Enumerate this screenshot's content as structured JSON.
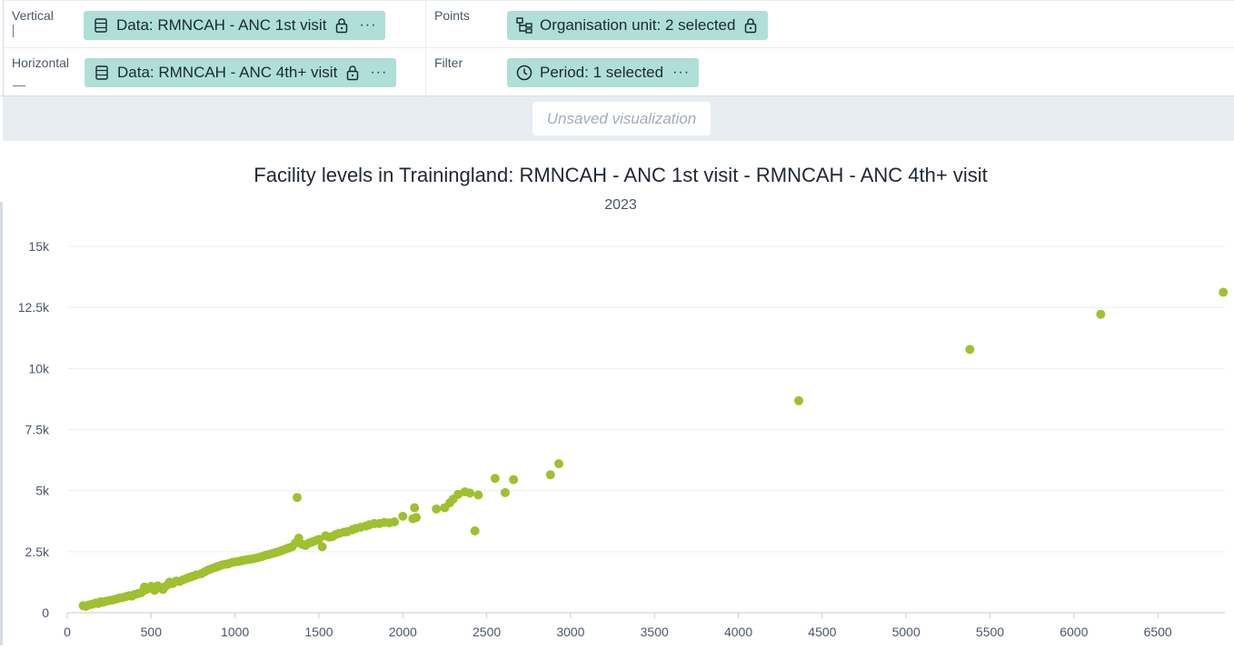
{
  "layout": {
    "vertical": {
      "label": "Vertical",
      "chip": "Data: RMNCAH - ANC 1st visit",
      "icon": "data-table-icon",
      "locked": true
    },
    "horizontal": {
      "label": "Horizontal",
      "chip": "Data: RMNCAH - ANC 4th+ visit",
      "icon": "data-table-icon",
      "locked": true
    },
    "points": {
      "label": "Points",
      "chip": "Organisation unit: 2 selected",
      "icon": "org-unit-tree-icon",
      "locked": true
    },
    "filter": {
      "label": "Filter",
      "chip": "Period: 1 selected",
      "icon": "clock-icon",
      "locked": false
    },
    "more_glyph": "···"
  },
  "banner": {
    "text": "Unsaved visualization"
  },
  "chart_data": {
    "type": "scatter",
    "title": "Facility levels in Trainingland: RMNCAH - ANC 1st visit - RMNCAH - ANC 4th+ visit",
    "subtitle": "2023",
    "xlabel": "",
    "ylabel": "",
    "xlim": [
      0,
      6900
    ],
    "ylim": [
      0,
      15000
    ],
    "x_ticks": [
      0,
      500,
      1000,
      1500,
      2000,
      2500,
      3000,
      3500,
      4000,
      4500,
      5000,
      5500,
      6000,
      6500
    ],
    "x_tick_labels": [
      "0",
      "500",
      "1000",
      "1500",
      "2000",
      "2500",
      "3000",
      "3500",
      "4000",
      "4500",
      "5000",
      "5500",
      "6000",
      "6500"
    ],
    "y_ticks": [
      0,
      2500,
      5000,
      7500,
      10000,
      12500,
      15000
    ],
    "y_tick_labels": [
      "0",
      "2.5k",
      "5k",
      "7.5k",
      "10k",
      "12.5k",
      "15k"
    ],
    "grid": true,
    "legend": "none",
    "marker_color": "#a0c030",
    "series": [
      {
        "points": [
          [
            95,
            290
          ],
          [
            110,
            260
          ],
          [
            130,
            320
          ],
          [
            150,
            350
          ],
          [
            170,
            400
          ],
          [
            185,
            380
          ],
          [
            200,
            450
          ],
          [
            215,
            430
          ],
          [
            230,
            470
          ],
          [
            250,
            500
          ],
          [
            270,
            520
          ],
          [
            290,
            560
          ],
          [
            310,
            600
          ],
          [
            330,
            620
          ],
          [
            350,
            660
          ],
          [
            370,
            700
          ],
          [
            385,
            680
          ],
          [
            400,
            740
          ],
          [
            420,
            780
          ],
          [
            440,
            820
          ],
          [
            455,
            900
          ],
          [
            460,
            1050
          ],
          [
            470,
            950
          ],
          [
            490,
            1000
          ],
          [
            500,
            1080
          ],
          [
            520,
            920
          ],
          [
            540,
            1100
          ],
          [
            560,
            1000
          ],
          [
            570,
            950
          ],
          [
            580,
            1050
          ],
          [
            600,
            1150
          ],
          [
            610,
            1250
          ],
          [
            630,
            1200
          ],
          [
            650,
            1300
          ],
          [
            670,
            1280
          ],
          [
            690,
            1350
          ],
          [
            710,
            1400
          ],
          [
            730,
            1450
          ],
          [
            750,
            1500
          ],
          [
            770,
            1550
          ],
          [
            800,
            1600
          ],
          [
            820,
            1680
          ],
          [
            840,
            1750
          ],
          [
            860,
            1800
          ],
          [
            880,
            1850
          ],
          [
            900,
            1900
          ],
          [
            920,
            1950
          ],
          [
            940,
            1980
          ],
          [
            960,
            2000
          ],
          [
            980,
            2050
          ],
          [
            1000,
            2080
          ],
          [
            1020,
            2100
          ],
          [
            1040,
            2130
          ],
          [
            1060,
            2160
          ],
          [
            1080,
            2180
          ],
          [
            1100,
            2200
          ],
          [
            1120,
            2230
          ],
          [
            1140,
            2260
          ],
          [
            1160,
            2300
          ],
          [
            1180,
            2350
          ],
          [
            1200,
            2380
          ],
          [
            1220,
            2420
          ],
          [
            1240,
            2460
          ],
          [
            1260,
            2500
          ],
          [
            1280,
            2550
          ],
          [
            1300,
            2600
          ],
          [
            1320,
            2650
          ],
          [
            1340,
            2700
          ],
          [
            1360,
            2850
          ],
          [
            1370,
            4720
          ],
          [
            1380,
            3050
          ],
          [
            1400,
            2800
          ],
          [
            1420,
            2750
          ],
          [
            1440,
            2850
          ],
          [
            1460,
            2900
          ],
          [
            1480,
            2950
          ],
          [
            1500,
            3000
          ],
          [
            1520,
            2700
          ],
          [
            1540,
            3150
          ],
          [
            1560,
            3100
          ],
          [
            1580,
            3120
          ],
          [
            1600,
            3200
          ],
          [
            1620,
            3250
          ],
          [
            1650,
            3300
          ],
          [
            1670,
            3320
          ],
          [
            1700,
            3400
          ],
          [
            1720,
            3450
          ],
          [
            1750,
            3500
          ],
          [
            1780,
            3550
          ],
          [
            1800,
            3600
          ],
          [
            1830,
            3650
          ],
          [
            1860,
            3650
          ],
          [
            1890,
            3700
          ],
          [
            1920,
            3680
          ],
          [
            1950,
            3720
          ],
          [
            2000,
            3950
          ],
          [
            2060,
            3850
          ],
          [
            2070,
            4300
          ],
          [
            2080,
            3900
          ],
          [
            2200,
            4250
          ],
          [
            2250,
            4300
          ],
          [
            2280,
            4500
          ],
          [
            2300,
            4650
          ],
          [
            2330,
            4850
          ],
          [
            2370,
            4950
          ],
          [
            2400,
            4900
          ],
          [
            2430,
            3350
          ],
          [
            2450,
            4820
          ],
          [
            2550,
            5500
          ],
          [
            2610,
            4920
          ],
          [
            2660,
            5450
          ],
          [
            2880,
            5650
          ],
          [
            2930,
            6100
          ],
          [
            4360,
            8680
          ],
          [
            5380,
            10780
          ],
          [
            6160,
            12220
          ],
          [
            6890,
            13120
          ]
        ]
      }
    ]
  }
}
